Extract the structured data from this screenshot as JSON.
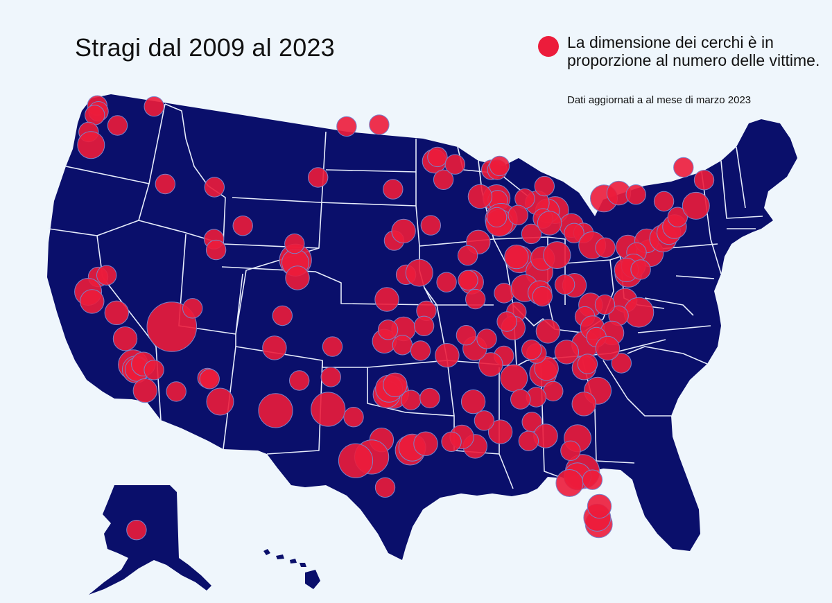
{
  "title": "Stragi dal 2009 al 2023",
  "legend": {
    "text": "La dimensione dei cerchi è in proporzione al numero delle vittime.",
    "note": "Dati aggiornati a al mese di marzo 2023"
  },
  "colors": {
    "background": "#eff6fc",
    "land": "#0a0f6b",
    "borders": "#e6ecfb",
    "marker": "#ec1c3b",
    "marker_stroke": "#7a82c9"
  },
  "icons": [
    "legend-circle-icon"
  ],
  "map_features": [
    "contiguous-united-states",
    "alaska",
    "hawaii",
    "state-borders",
    "incident-circles"
  ],
  "markers": [
    [
      -122.33,
      47.61,
      1
    ],
    [
      -122.2,
      47.3,
      1
    ],
    [
      -122.5,
      47.1,
      1
    ],
    [
      -122.95,
      46.2,
      1
    ],
    [
      -122.68,
      45.52,
      3
    ],
    [
      -120.5,
      46.6,
      1
    ],
    [
      -117.43,
      47.66,
      1
    ],
    [
      -116.2,
      43.6,
      1
    ],
    [
      -112.0,
      43.5,
      1
    ],
    [
      -121.5,
      38.6,
      1
    ],
    [
      -122.27,
      37.8,
      3
    ],
    [
      -121.9,
      37.3,
      2
    ],
    [
      -120.8,
      38.7,
      1
    ],
    [
      -119.8,
      36.75,
      2
    ],
    [
      -119.0,
      35.4,
      2
    ],
    [
      -118.24,
      34.05,
      4
    ],
    [
      -118.0,
      33.8,
      3
    ],
    [
      -117.9,
      33.8,
      2
    ],
    [
      -117.16,
      32.7,
      2
    ],
    [
      -117.4,
      34.1,
      2
    ],
    [
      -116.5,
      33.8,
      1
    ],
    [
      -115.17,
      36.1,
      16
    ],
    [
      -113.5,
      37.1,
      1
    ],
    [
      -114.6,
      32.7,
      1
    ],
    [
      -112.07,
      33.45,
      1
    ],
    [
      -111.9,
      33.4,
      1
    ],
    [
      -110.97,
      32.22,
      3
    ],
    [
      -111.9,
      40.76,
      1
    ],
    [
      -111.7,
      40.2,
      1
    ],
    [
      -109.5,
      41.5,
      1
    ],
    [
      -104.99,
      39.74,
      5
    ],
    [
      -105.0,
      39.6,
      3
    ],
    [
      -104.8,
      38.8,
      2
    ],
    [
      -105.1,
      40.6,
      1
    ],
    [
      -103.2,
      44.1,
      1
    ],
    [
      -106.6,
      35.1,
      2
    ],
    [
      -106.4,
      31.8,
      6
    ],
    [
      -104.5,
      33.4,
      1
    ],
    [
      -106.0,
      36.8,
      1
    ],
    [
      -101.8,
      35.2,
      1
    ],
    [
      -101.9,
      33.6,
      1
    ],
    [
      -102.1,
      31.9,
      6
    ],
    [
      -100.0,
      31.5,
      1
    ],
    [
      -97.0,
      32.8,
      4
    ],
    [
      -96.8,
      32.8,
      5
    ],
    [
      -97.3,
      32.7,
      3
    ],
    [
      -97.1,
      33.0,
      3
    ],
    [
      -96.6,
      33.2,
      2
    ],
    [
      -97.7,
      30.3,
      2
    ],
    [
      -98.5,
      29.4,
      6
    ],
    [
      -99.8,
      29.2,
      6
    ],
    [
      -97.4,
      27.8,
      1
    ],
    [
      -95.37,
      29.76,
      4
    ],
    [
      -95.2,
      29.9,
      3
    ],
    [
      -94.1,
      30.1,
      2
    ],
    [
      -95.3,
      32.4,
      1
    ],
    [
      -97.5,
      35.5,
      2
    ],
    [
      -95.9,
      36.15,
      2
    ],
    [
      -97.2,
      36.1,
      1
    ],
    [
      -96.0,
      35.3,
      1
    ],
    [
      -94.5,
      35.0,
      1
    ],
    [
      -97.3,
      37.7,
      2
    ],
    [
      -95.7,
      39.0,
      1
    ],
    [
      -94.58,
      39.1,
      3
    ],
    [
      -94.0,
      37.1,
      1
    ],
    [
      -92.3,
      38.6,
      1
    ],
    [
      -90.2,
      38.6,
      2
    ],
    [
      -90.5,
      38.7,
      1
    ],
    [
      -96.7,
      40.8,
      1
    ],
    [
      -95.9,
      41.3,
      2
    ],
    [
      -93.6,
      41.6,
      1
    ],
    [
      -100.8,
      46.8,
      1
    ],
    [
      -98.0,
      46.9,
      1
    ],
    [
      -96.8,
      43.5,
      1
    ],
    [
      -93.27,
      44.98,
      2
    ],
    [
      -92.5,
      44.0,
      1
    ],
    [
      -93.0,
      45.2,
      1
    ],
    [
      -88.0,
      43.0,
      3
    ],
    [
      -87.9,
      42.9,
      1
    ],
    [
      -89.4,
      43.1,
      2
    ],
    [
      -88.4,
      44.5,
      1
    ],
    [
      -91.5,
      44.8,
      1
    ],
    [
      -87.9,
      44.5,
      1
    ],
    [
      -87.7,
      44.7,
      1
    ],
    [
      -87.63,
      41.88,
      5
    ],
    [
      -87.8,
      41.7,
      3
    ],
    [
      -88.0,
      42.0,
      1
    ],
    [
      -89.6,
      40.7,
      2
    ],
    [
      -90.5,
      40.0,
      1
    ],
    [
      -89.9,
      37.7,
      1
    ],
    [
      -86.16,
      39.77,
      3
    ],
    [
      -86.4,
      39.9,
      2
    ],
    [
      -85.1,
      41.1,
      1
    ],
    [
      -87.5,
      38.0,
      1
    ],
    [
      -83.05,
      42.33,
      3
    ],
    [
      -83.7,
      42.3,
      2
    ],
    [
      -84.55,
      42.73,
      2
    ],
    [
      -85.6,
      42.96,
      1
    ],
    [
      -86.2,
      42.1,
      1
    ],
    [
      -83.9,
      43.6,
      1
    ],
    [
      -84.1,
      41.9,
      1
    ],
    [
      -84.5,
      39.1,
      3
    ],
    [
      -84.2,
      39.8,
      2
    ],
    [
      -82.99,
      39.96,
      3
    ],
    [
      -81.7,
      41.5,
      2
    ],
    [
      -83.55,
      41.65,
      2
    ],
    [
      -80.7,
      41.1,
      1
    ],
    [
      -81.5,
      41.1,
      1
    ],
    [
      -85.76,
      38.25,
      3
    ],
    [
      -84.5,
      38.0,
      2
    ],
    [
      -86.5,
      37.0,
      1
    ],
    [
      -83.9,
      35.96,
      2
    ],
    [
      -84.3,
      37.8,
      1
    ],
    [
      -80.0,
      40.44,
      3
    ],
    [
      -77.0,
      40.3,
      2
    ],
    [
      -75.17,
      39.95,
      3
    ],
    [
      -75.4,
      40.6,
      2
    ],
    [
      -76.3,
      40.0,
      1
    ],
    [
      -78.9,
      40.3,
      1
    ],
    [
      -78.88,
      42.89,
      3
    ],
    [
      -77.6,
      43.15,
      2
    ],
    [
      -76.15,
      43.05,
      1
    ],
    [
      -73.8,
      42.65,
      1
    ],
    [
      -74.0,
      40.7,
      3
    ],
    [
      -73.5,
      41.0,
      2
    ],
    [
      -73.0,
      41.3,
      2
    ],
    [
      -72.7,
      41.8,
      1
    ],
    [
      -71.1,
      42.36,
      3
    ],
    [
      -70.3,
      43.7,
      1
    ],
    [
      -72.0,
      44.4,
      1
    ],
    [
      -77.04,
      38.9,
      3
    ],
    [
      -76.6,
      39.3,
      2
    ],
    [
      -77.2,
      39.1,
      2
    ],
    [
      -76.0,
      39.1,
      1
    ],
    [
      -77.4,
      37.5,
      2
    ],
    [
      -76.3,
      36.85,
      4
    ],
    [
      -78.0,
      36.7,
      1
    ],
    [
      -80.3,
      37.3,
      2
    ],
    [
      -79.1,
      37.3,
      1
    ],
    [
      -81.6,
      38.35,
      2
    ],
    [
      -82.4,
      38.4,
      1
    ],
    [
      -80.8,
      36.7,
      1
    ],
    [
      -80.84,
      35.23,
      3
    ],
    [
      -80.2,
      36.1,
      2
    ],
    [
      -78.6,
      35.8,
      2
    ],
    [
      -79.9,
      35.6,
      1
    ],
    [
      -77.9,
      34.2,
      1
    ],
    [
      -79.0,
      35.0,
      2
    ],
    [
      -79.93,
      32.78,
      3
    ],
    [
      -81.0,
      34.0,
      2
    ],
    [
      -82.4,
      34.85,
      2
    ],
    [
      -80.7,
      34.2,
      1
    ],
    [
      -84.39,
      33.75,
      3
    ],
    [
      -84.1,
      34.0,
      2
    ],
    [
      -83.6,
      32.8,
      1
    ],
    [
      -81.1,
      32.1,
      2
    ],
    [
      -84.9,
      34.8,
      1
    ],
    [
      -85.0,
      32.5,
      1
    ],
    [
      -86.8,
      33.52,
      3
    ],
    [
      -86.3,
      32.4,
      1
    ],
    [
      -88.0,
      30.7,
      2
    ],
    [
      -85.4,
      31.2,
      1
    ],
    [
      -87.6,
      34.7,
      1
    ],
    [
      -90.18,
      32.3,
      2
    ],
    [
      -89.3,
      31.3,
      1
    ],
    [
      -88.7,
      34.25,
      2
    ],
    [
      -90.0,
      35.1,
      2
    ],
    [
      -89.0,
      35.6,
      1
    ],
    [
      -90.07,
      29.95,
      2
    ],
    [
      -91.15,
      30.45,
      2
    ],
    [
      -93.75,
      32.5,
      1
    ],
    [
      -92.0,
      30.2,
      1
    ],
    [
      -92.3,
      34.75,
      2
    ],
    [
      -94.2,
      36.3,
      1
    ],
    [
      -90.7,
      35.8,
      1
    ],
    [
      -86.78,
      36.16,
      2
    ],
    [
      -87.3,
      36.5,
      1
    ],
    [
      -85.3,
      35.0,
      1
    ],
    [
      -81.38,
      28.54,
      6
    ],
    [
      -81.8,
      28.3,
      3
    ],
    [
      -82.46,
      27.95,
      3
    ],
    [
      -80.19,
      25.76,
      3
    ],
    [
      -80.3,
      26.1,
      3
    ],
    [
      -80.1,
      26.7,
      2
    ],
    [
      -81.7,
      30.3,
      3
    ],
    [
      -84.3,
      30.45,
      2
    ],
    [
      -85.7,
      30.2,
      1
    ],
    [
      -82.3,
      29.65,
      1
    ],
    [
      -80.6,
      28.1,
      1
    ],
    [
      -149.9,
      61.2,
      1
    ]
  ]
}
